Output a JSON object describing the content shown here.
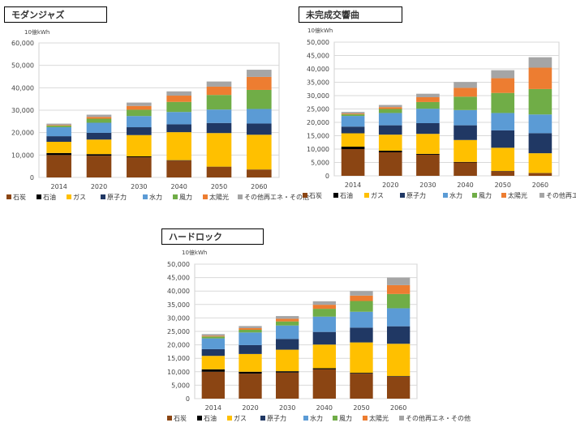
{
  "colors": {
    "石炭": "#8B4513",
    "石油": "#000000",
    "ガス": "#FFC000",
    "原子力": "#203864",
    "水力": "#5B9BD5",
    "風力": "#70AD47",
    "太陽光": "#ED7D31",
    "その他再エネ・その他": "#A5A5A5"
  },
  "chart_data": [
    {
      "type": "bar",
      "stacked": true,
      "title": "モダンジャズ",
      "ylabel": "10億kWh",
      "ylim": [
        0,
        60000
      ],
      "ytick_step": 10000,
      "categories": [
        "2014",
        "2020",
        "2030",
        "2040",
        "2050",
        "2060"
      ],
      "series": [
        {
          "name": "石炭",
          "values": [
            10000,
            9700,
            9000,
            7500,
            4700,
            3500
          ]
        },
        {
          "name": "石油",
          "values": [
            900,
            700,
            400,
            200,
            100,
            50
          ]
        },
        {
          "name": "ガス",
          "values": [
            5000,
            6500,
            9500,
            12500,
            15000,
            15500
          ]
        },
        {
          "name": "原子力",
          "values": [
            2500,
            3000,
            3500,
            3500,
            4500,
            5000
          ]
        },
        {
          "name": "水力",
          "values": [
            4000,
            4500,
            5000,
            5500,
            6000,
            6500
          ]
        },
        {
          "name": "風力",
          "values": [
            700,
            1800,
            2800,
            4500,
            6500,
            8500
          ]
        },
        {
          "name": "太陽光",
          "values": [
            300,
            800,
            1700,
            2800,
            3700,
            5800
          ]
        },
        {
          "name": "その他再エネ・その他",
          "values": [
            600,
            1000,
            1500,
            1900,
            2300,
            3200
          ]
        }
      ],
      "legend": [
        "石炭",
        "石油",
        "ガス",
        "原子力",
        "水力",
        "風力",
        "太陽光",
        "その他再エネ・その他"
      ]
    },
    {
      "type": "bar",
      "stacked": true,
      "title": "未完成交響曲",
      "ylabel": "10億kWh",
      "ylim": [
        0,
        50000
      ],
      "ytick_step": 5000,
      "categories": [
        "2014",
        "2020",
        "2030",
        "2040",
        "2050",
        "2060"
      ],
      "series": [
        {
          "name": "石炭",
          "values": [
            10000,
            8800,
            7900,
            5000,
            1700,
            1000
          ]
        },
        {
          "name": "石油",
          "values": [
            900,
            600,
            300,
            200,
            100,
            50
          ]
        },
        {
          "name": "ガス",
          "values": [
            5000,
            6000,
            7500,
            8200,
            8700,
            7400
          ]
        },
        {
          "name": "原子力",
          "values": [
            2500,
            3500,
            4000,
            5500,
            6500,
            7500
          ]
        },
        {
          "name": "水力",
          "values": [
            4000,
            4600,
            5400,
            5700,
            6500,
            7000
          ]
        },
        {
          "name": "風力",
          "values": [
            600,
            1500,
            2500,
            5000,
            7500,
            9500
          ]
        },
        {
          "name": "太陽光",
          "values": [
            300,
            700,
            1800,
            3300,
            5500,
            8000
          ]
        },
        {
          "name": "その他再エネ・その他",
          "values": [
            600,
            800,
            1300,
            2200,
            3000,
            3900
          ]
        }
      ],
      "legend": [
        "石炭",
        "石油",
        "ガス",
        "原子力",
        "水力",
        "風力",
        "太陽光",
        "その他再エネ・その他"
      ]
    },
    {
      "type": "bar",
      "stacked": true,
      "title": "ハードロック",
      "ylabel": "10億kWh",
      "ylim": [
        0,
        50000
      ],
      "ytick_step": 5000,
      "categories": [
        "2014",
        "2020",
        "2030",
        "2040",
        "2050",
        "2060"
      ],
      "series": [
        {
          "name": "石炭",
          "values": [
            10000,
            9300,
            9700,
            10900,
            9300,
            8200
          ]
        },
        {
          "name": "石油",
          "values": [
            900,
            700,
            500,
            400,
            300,
            200
          ]
        },
        {
          "name": "ガス",
          "values": [
            5000,
            6600,
            8000,
            8800,
            11300,
            12000
          ]
        },
        {
          "name": "原子力",
          "values": [
            2500,
            3300,
            4000,
            4700,
            5500,
            6500
          ]
        },
        {
          "name": "水力",
          "values": [
            4000,
            4700,
            5000,
            5700,
            5900,
            6700
          ]
        },
        {
          "name": "風力",
          "values": [
            700,
            1000,
            1500,
            2900,
            4000,
            5300
          ]
        },
        {
          "name": "太陽光",
          "values": [
            300,
            600,
            1000,
            1500,
            2000,
            3300
          ]
        },
        {
          "name": "その他再エネ・その他",
          "values": [
            600,
            800,
            1000,
            1300,
            1700,
            2800
          ]
        }
      ],
      "legend": [
        "石炭",
        "石油",
        "ガス",
        "原子力",
        "水力",
        "風力",
        "太陽光",
        "その他再エネ・その他"
      ]
    }
  ]
}
